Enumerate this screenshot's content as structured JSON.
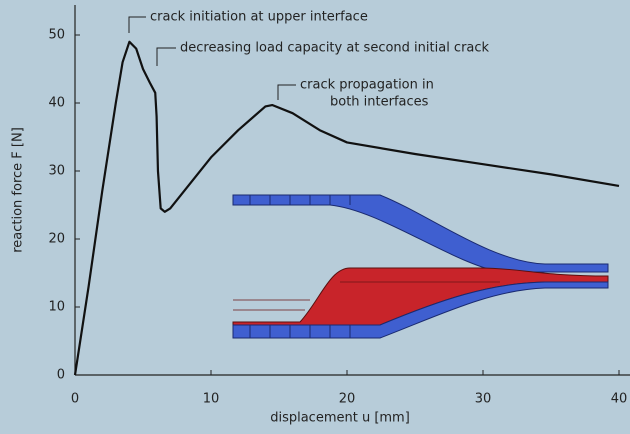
{
  "chart_data": {
    "type": "line",
    "x_label": "displacement u [mm]",
    "y_label": "reaction force F [N]",
    "annotations": [
      "crack initiation at upper interface",
      "decreasing load capacity at second initial crack",
      "crack propagation in",
      "both interfaces"
    ],
    "x": [
      0,
      1,
      2,
      3,
      3.5,
      4,
      4.5,
      5,
      5.5,
      5.9,
      6,
      6.1,
      6.3,
      6.6,
      7,
      8,
      10,
      12,
      14,
      14.5,
      16,
      18,
      20,
      25,
      30,
      35,
      40
    ],
    "series": [
      {
        "color": "#111111",
        "values": [
          0,
          13,
          27,
          40,
          46,
          49,
          48,
          45,
          43,
          41.5,
          38,
          30,
          24.5,
          24,
          24.5,
          27,
          32,
          36,
          39.5,
          39.7,
          38.5,
          36,
          34.2,
          32.5,
          31,
          29.5,
          27.8
        ]
      }
    ],
    "xlim": [
      0,
      40.8
    ],
    "ylim": [
      0,
      54
    ],
    "xticks": [
      0,
      10,
      20,
      30,
      40
    ],
    "yticks": [
      0,
      10,
      20,
      30,
      40,
      50
    ]
  }
}
